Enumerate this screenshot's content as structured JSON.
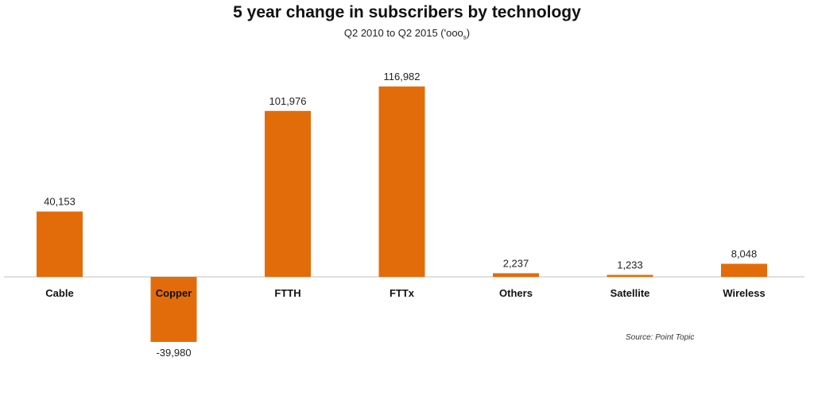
{
  "chart_data": {
    "type": "bar",
    "title": "5 year change in subscribers by technology",
    "subtitle_main": "Q2 2010 to Q2 2015 ('ooo",
    "subtitle_sub": "s",
    "subtitle_end": ")",
    "categories": [
      "Cable",
      "Copper",
      "FTTH",
      "FTTx",
      "Others",
      "Satellite",
      "Wireless"
    ],
    "values": [
      40153,
      -39980,
      101976,
      116982,
      2237,
      1233,
      8048
    ],
    "value_labels": [
      "40,153",
      "-39,980",
      "101,976",
      "116,982",
      "2,237",
      "1,233",
      "8,048"
    ],
    "bar_color": "#E36C0A",
    "axis_color": "#BFBFBF",
    "source": "Source: Point Topic",
    "grid": false,
    "legend": "none"
  }
}
